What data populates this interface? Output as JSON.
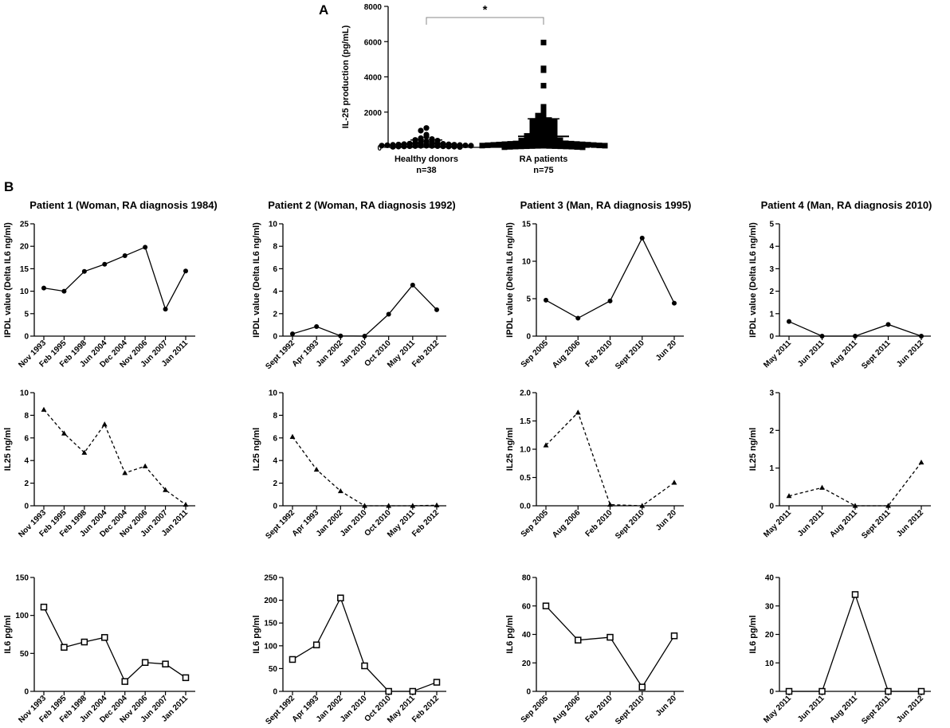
{
  "panel_labels": {
    "a": "A",
    "b": "B"
  },
  "scatter": {
    "type": "scatter",
    "ylabel": "IL-25 production (pg/mL)",
    "ylim": [
      0,
      8000
    ],
    "yticks": [
      0,
      2000,
      4000,
      6000,
      8000
    ],
    "significance": "*",
    "groups": [
      {
        "name": "Healthy donors",
        "n_label": "n=38",
        "marker": "circle",
        "mean": 190,
        "sd": 230,
        "values": [
          1100,
          950,
          720,
          600,
          520,
          470,
          420,
          380,
          330,
          300,
          280,
          250,
          230,
          210,
          200,
          180,
          170,
          160,
          150,
          140,
          130,
          120,
          110,
          100,
          95,
          90,
          85,
          80,
          75,
          70,
          65,
          60,
          55,
          50,
          45,
          40,
          30,
          20
        ]
      },
      {
        "name": "RA patients",
        "n_label": "n=75",
        "marker": "square",
        "mean": 620,
        "sd": 1000,
        "values": [
          5950,
          4480,
          4380,
          3500,
          2300,
          2050,
          1950,
          1800,
          1700,
          1600,
          1550,
          1500,
          1450,
          1400,
          1350,
          1300,
          1250,
          1200,
          1150,
          1100,
          1050,
          1000,
          950,
          900,
          850,
          800,
          750,
          700,
          650,
          600,
          560,
          520,
          480,
          450,
          420,
          400,
          380,
          360,
          340,
          320,
          300,
          280,
          260,
          250,
          240,
          230,
          220,
          210,
          200,
          190,
          180,
          170,
          160,
          150,
          140,
          130,
          120,
          110,
          100,
          95,
          90,
          85,
          80,
          75,
          70,
          65,
          60,
          55,
          50,
          45,
          40,
          30,
          20,
          10,
          5
        ]
      }
    ]
  },
  "patients": [
    {
      "title": "Patient 1 (Woman, RA diagnosis 1984)",
      "ipdl": {
        "ylabel": "IPDL value (Delta IL6 ng/ml)",
        "ylim": [
          0,
          25
        ],
        "yticks": [
          0,
          5,
          10,
          15,
          20,
          25
        ],
        "categories": [
          "Nov 1993",
          "Feb 1995",
          "Feb 1998",
          "Jun 2004",
          "Dec 2004",
          "Nov 2006",
          "Jun 2007",
          "Jan 2011"
        ],
        "values": [
          10.7,
          10.0,
          14.4,
          16.0,
          17.9,
          19.8,
          6.0,
          14.5
        ]
      },
      "il25": {
        "ylabel": "IL25 ng/ml",
        "ylim": [
          0,
          10
        ],
        "yticks": [
          0,
          2,
          4,
          6,
          8,
          10
        ],
        "categories": [
          "Nov 1993",
          "Feb 1995",
          "Feb 1998",
          "Jun 2004",
          "Dec 2004",
          "Nov 2006",
          "Jun 2007",
          "Jan 2011"
        ],
        "values": [
          8.5,
          6.4,
          4.7,
          7.2,
          2.9,
          3.5,
          1.4,
          0.1
        ]
      },
      "il6": {
        "ylabel": "IL6 pg/ml",
        "ylim": [
          0,
          150
        ],
        "yticks": [
          0,
          50,
          100,
          150
        ],
        "categories": [
          "Nov 1993",
          "Feb 1995",
          "Feb 1998",
          "Jun 2004",
          "Dec 2004",
          "Nov 2006",
          "Jun 2007",
          "Jan 2011"
        ],
        "values": [
          111,
          58,
          65,
          71,
          13,
          38,
          36,
          18
        ]
      }
    },
    {
      "title": "Patient 2 (Woman, RA diagnosis 1992)",
      "ipdl": {
        "ylabel": "IPDL value (Delta IL6 ng/ml)",
        "ylim": [
          0,
          10
        ],
        "yticks": [
          0,
          2,
          4,
          6,
          8,
          10
        ],
        "categories": [
          "Sept 1992",
          "Apr 1993",
          "Jan 2002",
          "Jan 2010",
          "Oct 2010",
          "May 2011",
          "Feb 2012"
        ],
        "values": [
          0.2,
          0.85,
          0.02,
          0.0,
          1.95,
          4.55,
          2.35
        ]
      },
      "il25": {
        "ylabel": "IL25 ng/ml",
        "ylim": [
          0,
          10
        ],
        "yticks": [
          0,
          2,
          4,
          6,
          8,
          10
        ],
        "categories": [
          "Sept 1992",
          "Apr 1993",
          "Jan 2002",
          "Jan 2010",
          "Oct 2010",
          "May 2011",
          "Feb 2012"
        ],
        "values": [
          6.1,
          3.2,
          1.3,
          0.0,
          0.0,
          0.0,
          0.05
        ]
      },
      "il6": {
        "ylabel": "IL6 pg/ml",
        "ylim": [
          0,
          250
        ],
        "yticks": [
          0,
          50,
          100,
          150,
          200,
          250
        ],
        "categories": [
          "Sept 1992",
          "Apr 1993",
          "Jan 2002",
          "Jan 2010",
          "Oct 2010",
          "May 2011",
          "Feb 2012"
        ],
        "values": [
          70,
          102,
          205,
          56,
          0,
          0,
          20
        ]
      }
    },
    {
      "title": "Patient 3 (Man, RA diagnosis 1995)",
      "ipdl": {
        "ylabel": "IPDL value (Delta IL6 ng/ml)",
        "ylim": [
          0,
          15
        ],
        "yticks": [
          0,
          5,
          10,
          15
        ],
        "categories": [
          "Sep 2005",
          "Aug 2006",
          "Feb 2010",
          "Sept 2010",
          "Jun 20"
        ],
        "values": [
          4.8,
          2.4,
          4.7,
          13.1,
          4.4
        ]
      },
      "il25": {
        "ylabel": "IL25 ng/ml",
        "ylim": [
          0,
          2.0
        ],
        "yticks": [
          0,
          0.5,
          1.0,
          1.5,
          2.0
        ],
        "ytick_labels": [
          "0.0",
          "0.5",
          "1.0",
          "1.5",
          "2.0"
        ],
        "categories": [
          "Sep 2005",
          "Aug 2006",
          "Feb 2010",
          "Sept 2010",
          "Jun 20"
        ],
        "values": [
          1.07,
          1.65,
          0.02,
          0.0,
          0.41
        ]
      },
      "il6": {
        "ylabel": "IL6 pg/ml",
        "ylim": [
          0,
          80
        ],
        "yticks": [
          0,
          20,
          40,
          60,
          80
        ],
        "categories": [
          "Sep 2005",
          "Aug 2006",
          "Feb 2010",
          "Sept 2010",
          "Jun 20"
        ],
        "values": [
          60,
          36,
          38,
          3,
          39
        ]
      }
    },
    {
      "title": "Patient 4 (Man, RA diagnosis 2010)",
      "ipdl": {
        "ylabel": "IPDL value (Delta IL6 ng/ml)",
        "ylim": [
          0,
          5
        ],
        "yticks": [
          0,
          1,
          2,
          3,
          4,
          5
        ],
        "categories": [
          "May 2011",
          "Jun 2011",
          "Aug 2011",
          "Sept 2011",
          "Jun 2012"
        ],
        "values": [
          0.65,
          0.0,
          0.0,
          0.52,
          0.0
        ]
      },
      "il25": {
        "ylabel": "IL25 ng/ml",
        "ylim": [
          0,
          3
        ],
        "yticks": [
          0,
          1,
          2,
          3
        ],
        "categories": [
          "May 2011",
          "Jun 2011",
          "Aug 2011",
          "Sept 2011",
          "Jun 2012"
        ],
        "values": [
          0.26,
          0.48,
          0.0,
          0.0,
          1.15
        ]
      },
      "il6": {
        "ylabel": "IL6 pg/ml",
        "ylim": [
          0,
          40
        ],
        "yticks": [
          0,
          10,
          20,
          30,
          40
        ],
        "categories": [
          "May 2011",
          "Jun 2011",
          "Aug 2011",
          "Sept 2011",
          "Jun 2012"
        ],
        "values": [
          0,
          0,
          34,
          0,
          0
        ]
      }
    }
  ],
  "chart_data": [
    {
      "type": "scatter",
      "panel": "A",
      "ylabel": "IL-25 production (pg/mL)",
      "ylim": [
        0,
        8000
      ],
      "categories": [
        "Healthy donors n=38",
        "RA patients n=75"
      ],
      "annotations": [
        "*"
      ]
    },
    {
      "type": "line",
      "panel": "B",
      "subplots": "4 patients x 3 markers (IPDL solid circles, IL25 dashed triangles, IL6 solid open squares)"
    }
  ]
}
